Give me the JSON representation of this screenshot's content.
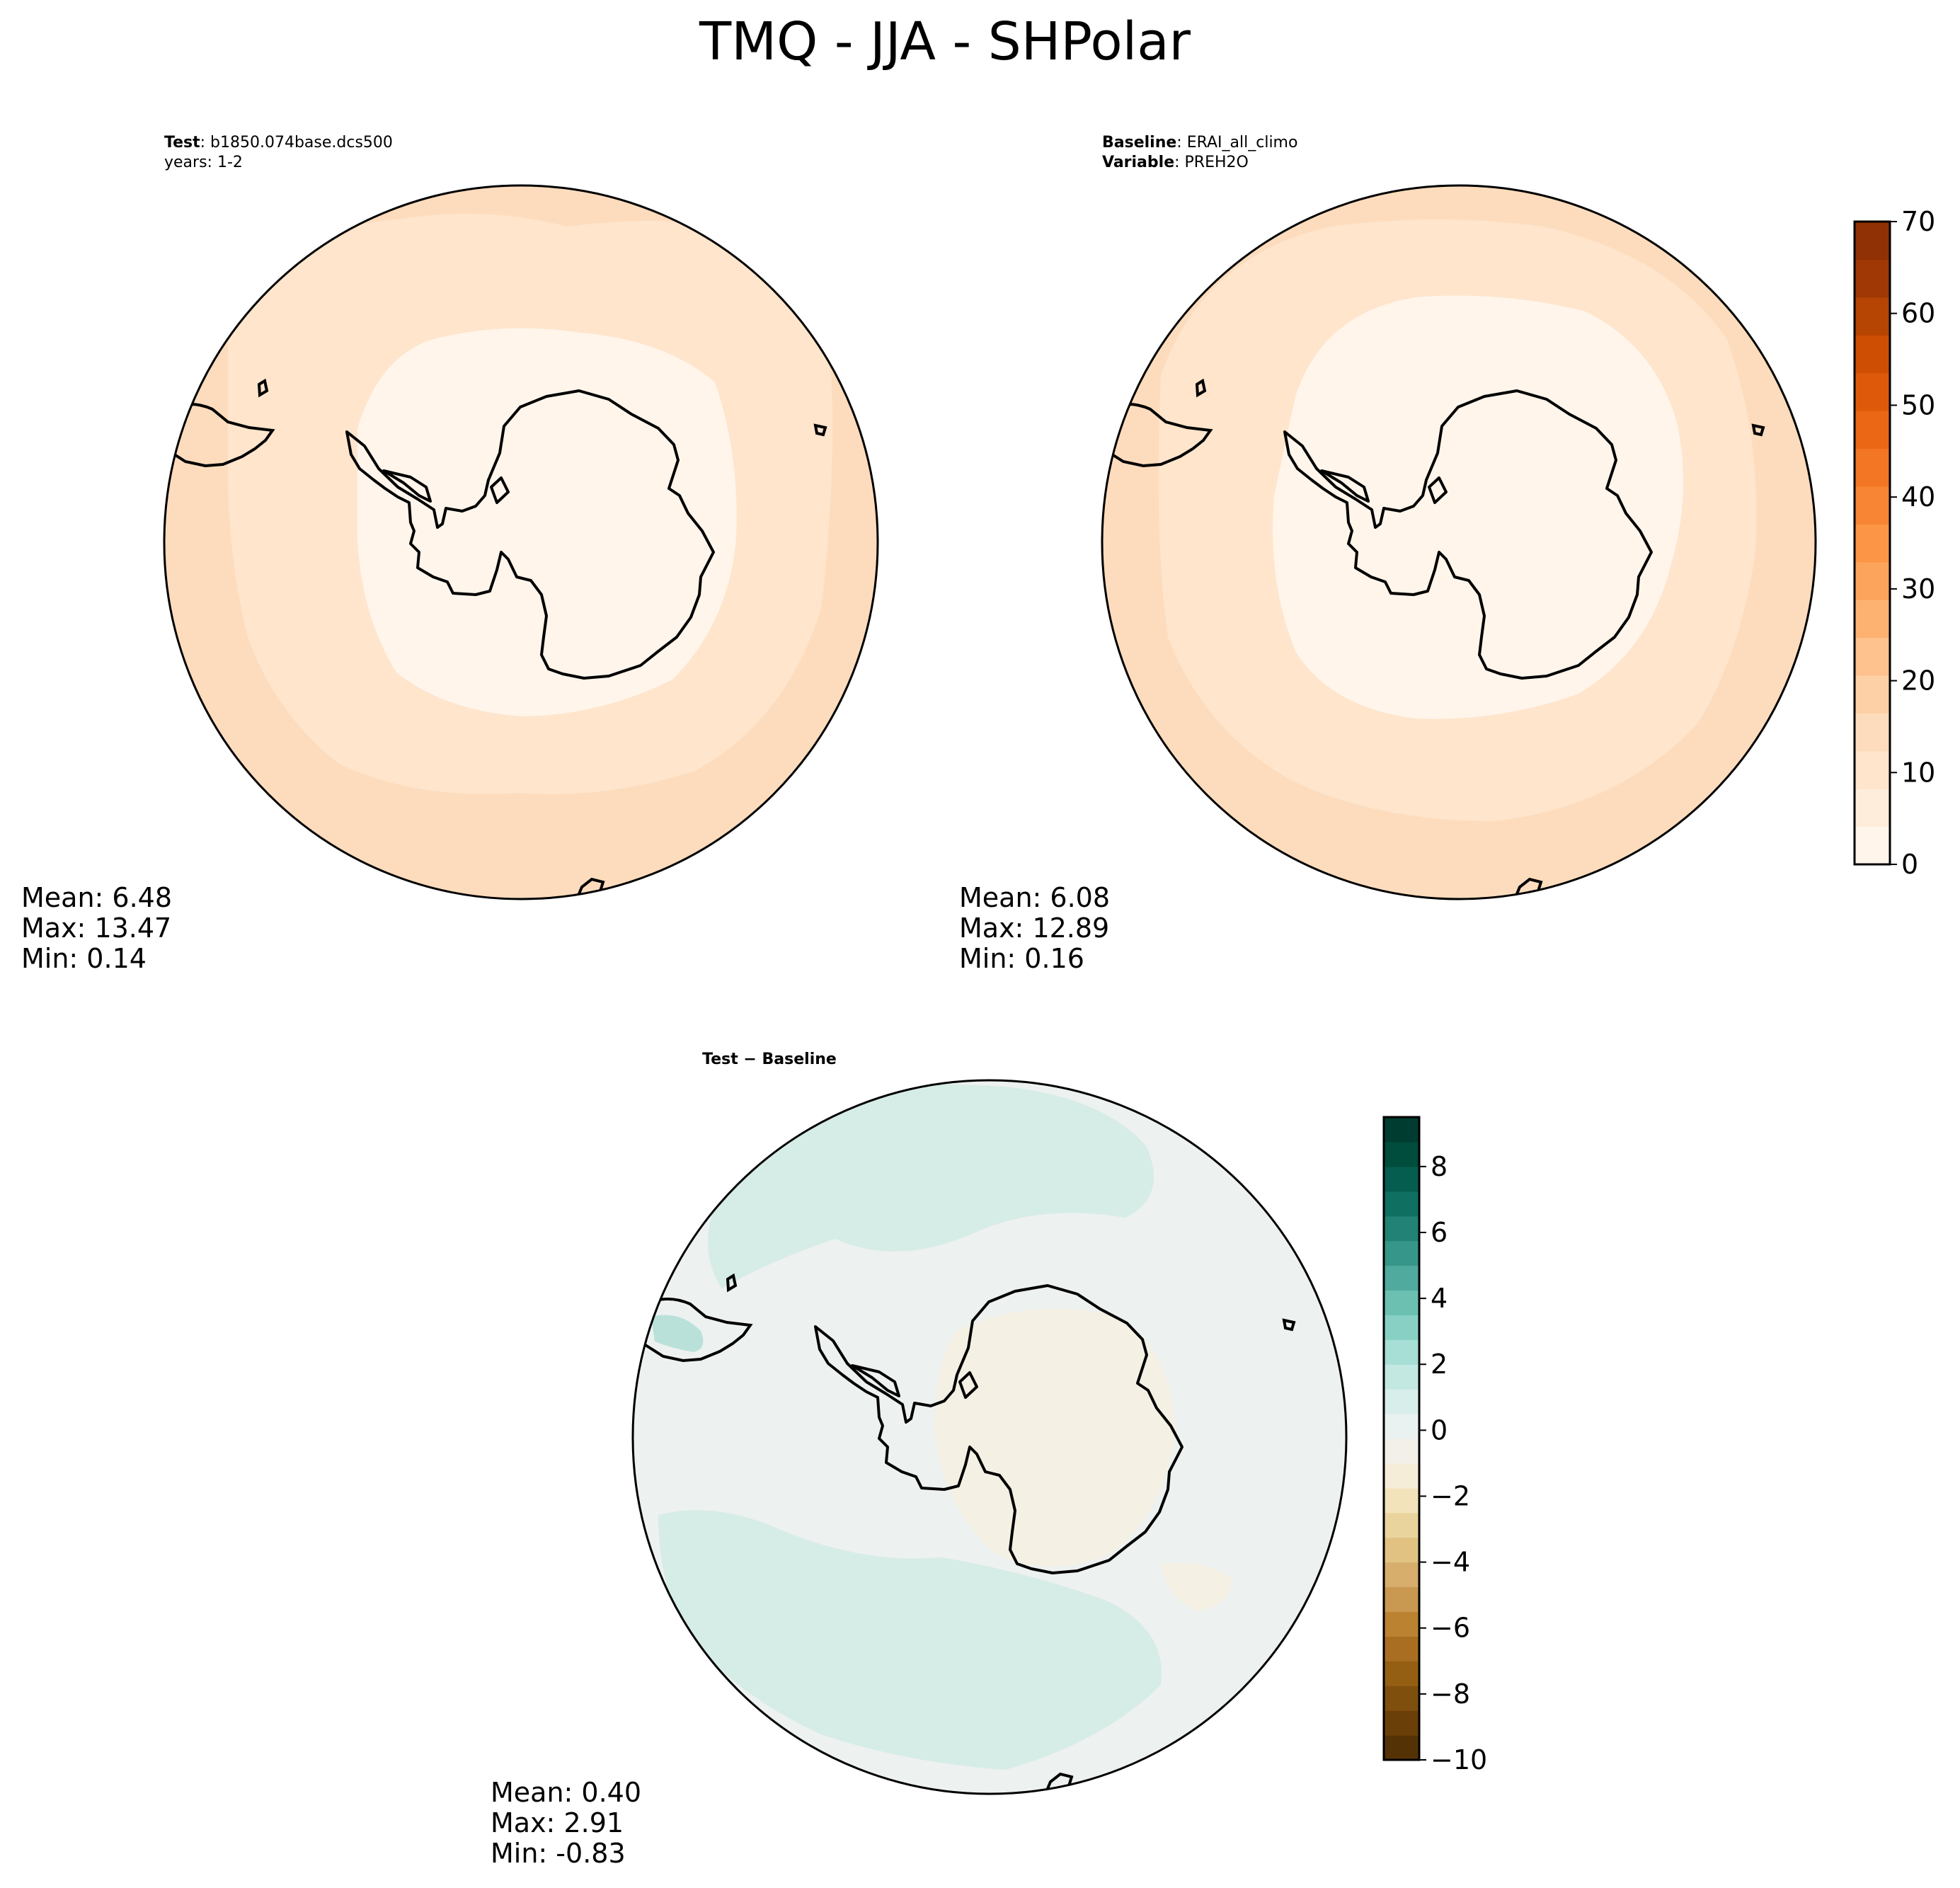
{
  "chart_data": {
    "type": "heatmap",
    "title": "TMQ - JJA - SHPolar",
    "panels": [
      {
        "id": "test",
        "label_bold": "Test",
        "label_text": ": b1850.074base.dcs500",
        "line2": "years: 1-2",
        "stats": {
          "mean_label": "Mean:  6.48",
          "max_label": "Max: 13.47",
          "min_label": "Min:  0.14"
        },
        "contour_levels": [
          10,
          5
        ]
      },
      {
        "id": "baseline",
        "label_bold": "Baseline",
        "label_text": ": ERAI_all_climo",
        "line2_bold": "Variable",
        "line2_text": ": PREH2O",
        "stats": {
          "mean_label": "Mean:  6.08",
          "max_label": "Max: 12.89",
          "min_label": "Min:  0.16"
        },
        "contour_levels": [
          10,
          5
        ]
      },
      {
        "id": "diff",
        "title": "Test − Baseline",
        "stats": {
          "mean_label": "Mean:  0.40",
          "max_label": "Max:  2.91",
          "min_label": "Min: -0.83"
        }
      }
    ],
    "colorbars": [
      {
        "id": "abs",
        "colormap": "Oranges",
        "range": [
          0,
          70
        ],
        "ticks": [
          "0",
          "10",
          "20",
          "30",
          "40",
          "50",
          "60",
          "70"
        ],
        "colors": [
          "#fff5eb",
          "#feeddb",
          "#fee5cc",
          "#fddcbd",
          "#fdd0a6",
          "#fdc28d",
          "#fdb272",
          "#fda45c",
          "#fc9546",
          "#f88533",
          "#f27623",
          "#eb6715",
          "#de5a0a",
          "#ce4e04",
          "#b64403",
          "#9f3804",
          "#8f3104"
        ]
      },
      {
        "id": "diff",
        "colormap": "BrBG",
        "range": [
          -10,
          9.5
        ],
        "ticks": [
          "8",
          "6",
          "4",
          "2",
          "0",
          "−2",
          "−4",
          "−6",
          "−8",
          "−10"
        ],
        "colors": [
          "#553205",
          "#6b4008",
          "#7f4f0d",
          "#955f13",
          "#a96e21",
          "#bb8232",
          "#c99851",
          "#d7ae6c",
          "#e2c283",
          "#ead49d",
          "#f2e3bb",
          "#f6edd9",
          "#f3f0ea",
          "#e9f2f0",
          "#d8eeea",
          "#c3e8e2",
          "#a7ded5",
          "#89d0c4",
          "#6cc0b1",
          "#50ab9e",
          "#37968a",
          "#218275",
          "#0f6f61",
          "#045d4f",
          "#004c3d",
          "#003c2f"
        ]
      }
    ],
    "region_colors": {
      "outer": "#fddcbd",
      "middle": "#fee5cc",
      "inner": "#fff5eb",
      "diff_base": "#edf1ef",
      "diff_teal": "#d6ece7",
      "diff_tan": "#f4f0e4"
    }
  }
}
